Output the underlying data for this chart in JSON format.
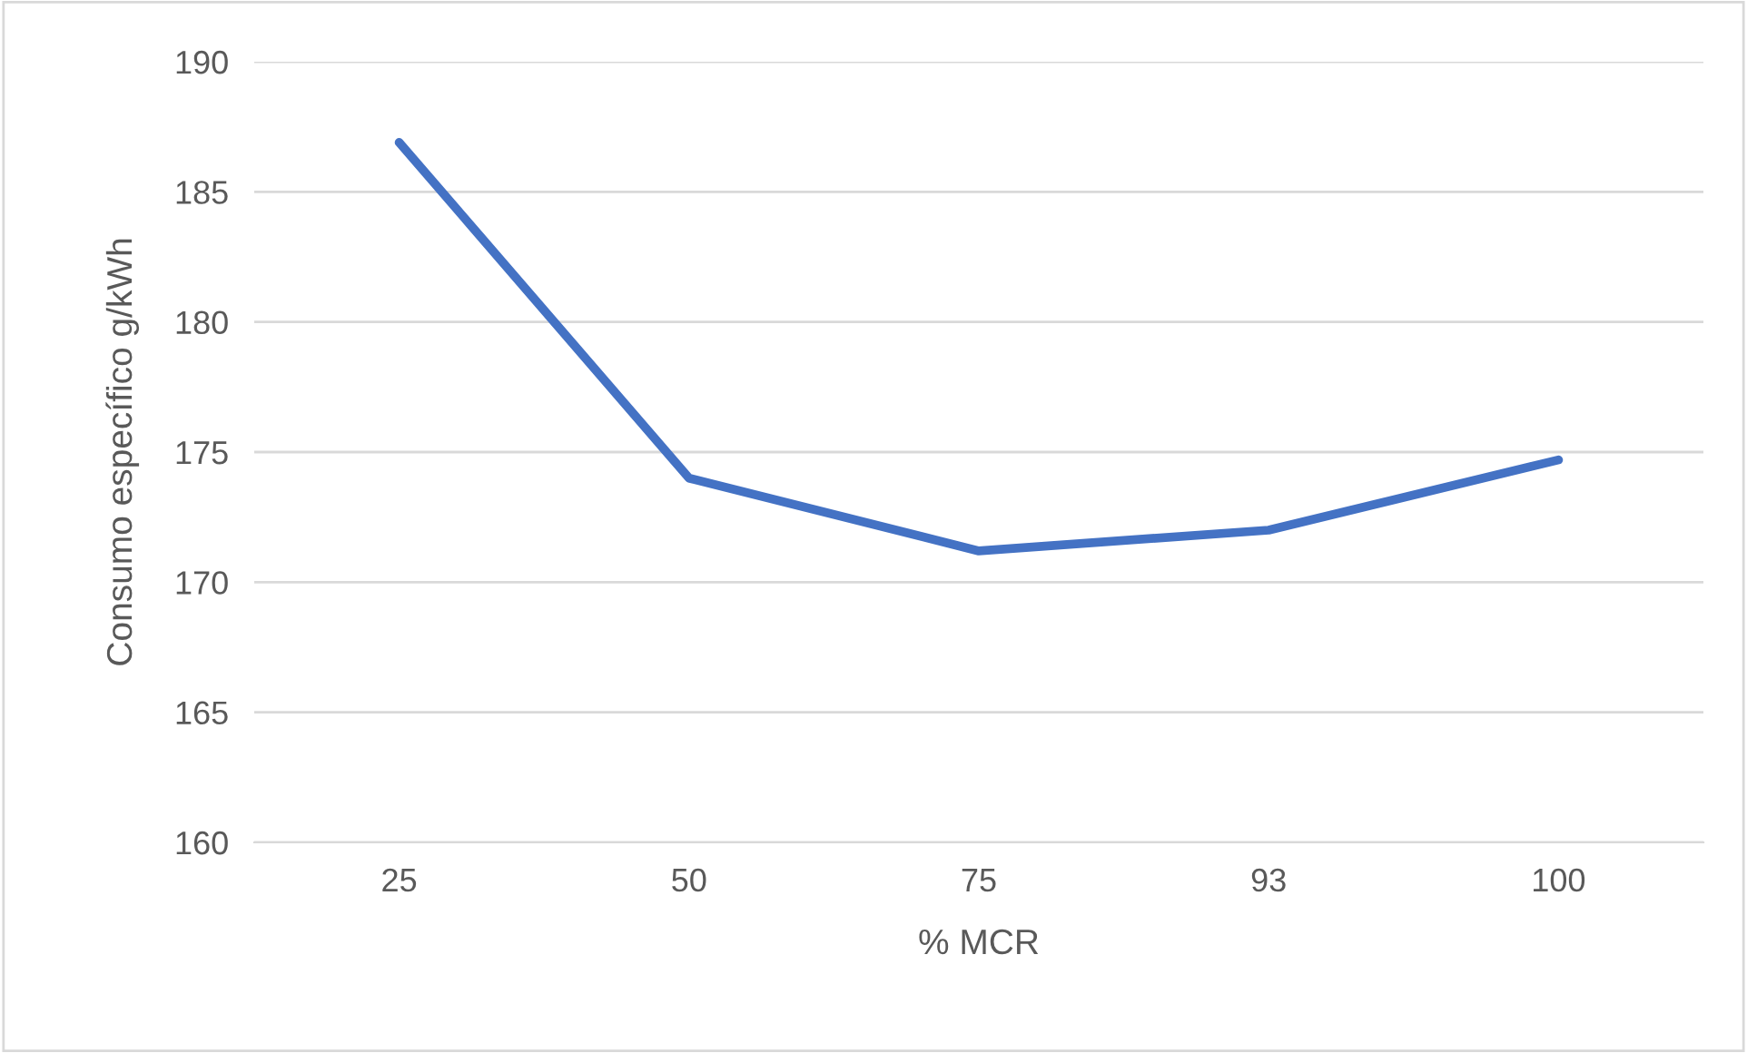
{
  "chart_data": {
    "type": "line",
    "categories": [
      "25",
      "50",
      "75",
      "93",
      "100"
    ],
    "series": [
      {
        "color": "#4472c4",
        "values": [
          186.9,
          174.0,
          171.2,
          172.0,
          174.7
        ]
      }
    ],
    "xlabel": "% MCR",
    "ylabel": "Consumo específico g/kWh",
    "ylim": [
      160,
      190
    ],
    "yticks": [
      160,
      165,
      170,
      175,
      180,
      185,
      190
    ],
    "grid": "y",
    "marker": "none",
    "line_style": "solid"
  }
}
